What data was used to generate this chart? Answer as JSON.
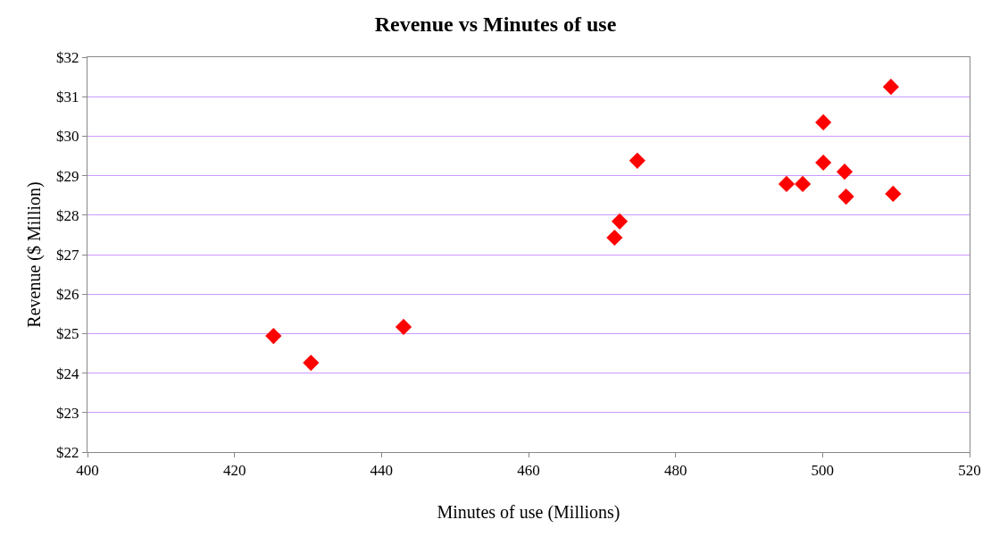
{
  "chart_data": {
    "type": "scatter",
    "title": "Revenue vs Minutes of use",
    "xlabel": "Minutes of use (Millions)",
    "ylabel": "Revenue ($ Million)",
    "x": [
      425.3,
      430.4,
      443.0,
      471.7,
      472.4,
      474.8,
      495.1,
      497.3,
      500.1,
      500.1,
      503.0,
      503.2,
      509.3,
      509.6
    ],
    "series": [
      {
        "color": "#ff0000",
        "values": [
          24.94,
          24.26,
          25.17,
          27.43,
          27.84,
          29.38,
          28.79,
          28.79,
          30.35,
          29.33,
          29.1,
          28.47,
          31.25,
          28.54
        ]
      }
    ],
    "xlim": [
      400,
      520
    ],
    "xticks": [
      400,
      420,
      440,
      460,
      480,
      500,
      520
    ],
    "ylim": [
      22,
      32
    ],
    "yticks": [
      {
        "value": 22,
        "label": "$22"
      },
      {
        "value": 23,
        "label": "$23"
      },
      {
        "value": 24,
        "label": "$24"
      },
      {
        "value": 25,
        "label": "$25"
      },
      {
        "value": 26,
        "label": "$26"
      },
      {
        "value": 27,
        "label": "$27"
      },
      {
        "value": 28,
        "label": "$28"
      },
      {
        "value": 29,
        "label": "$29"
      },
      {
        "value": 30,
        "label": "$30"
      },
      {
        "value": 31,
        "label": "$31"
      },
      {
        "value": 32,
        "label": "$32"
      }
    ],
    "grid": "y",
    "marker": "diamond"
  }
}
